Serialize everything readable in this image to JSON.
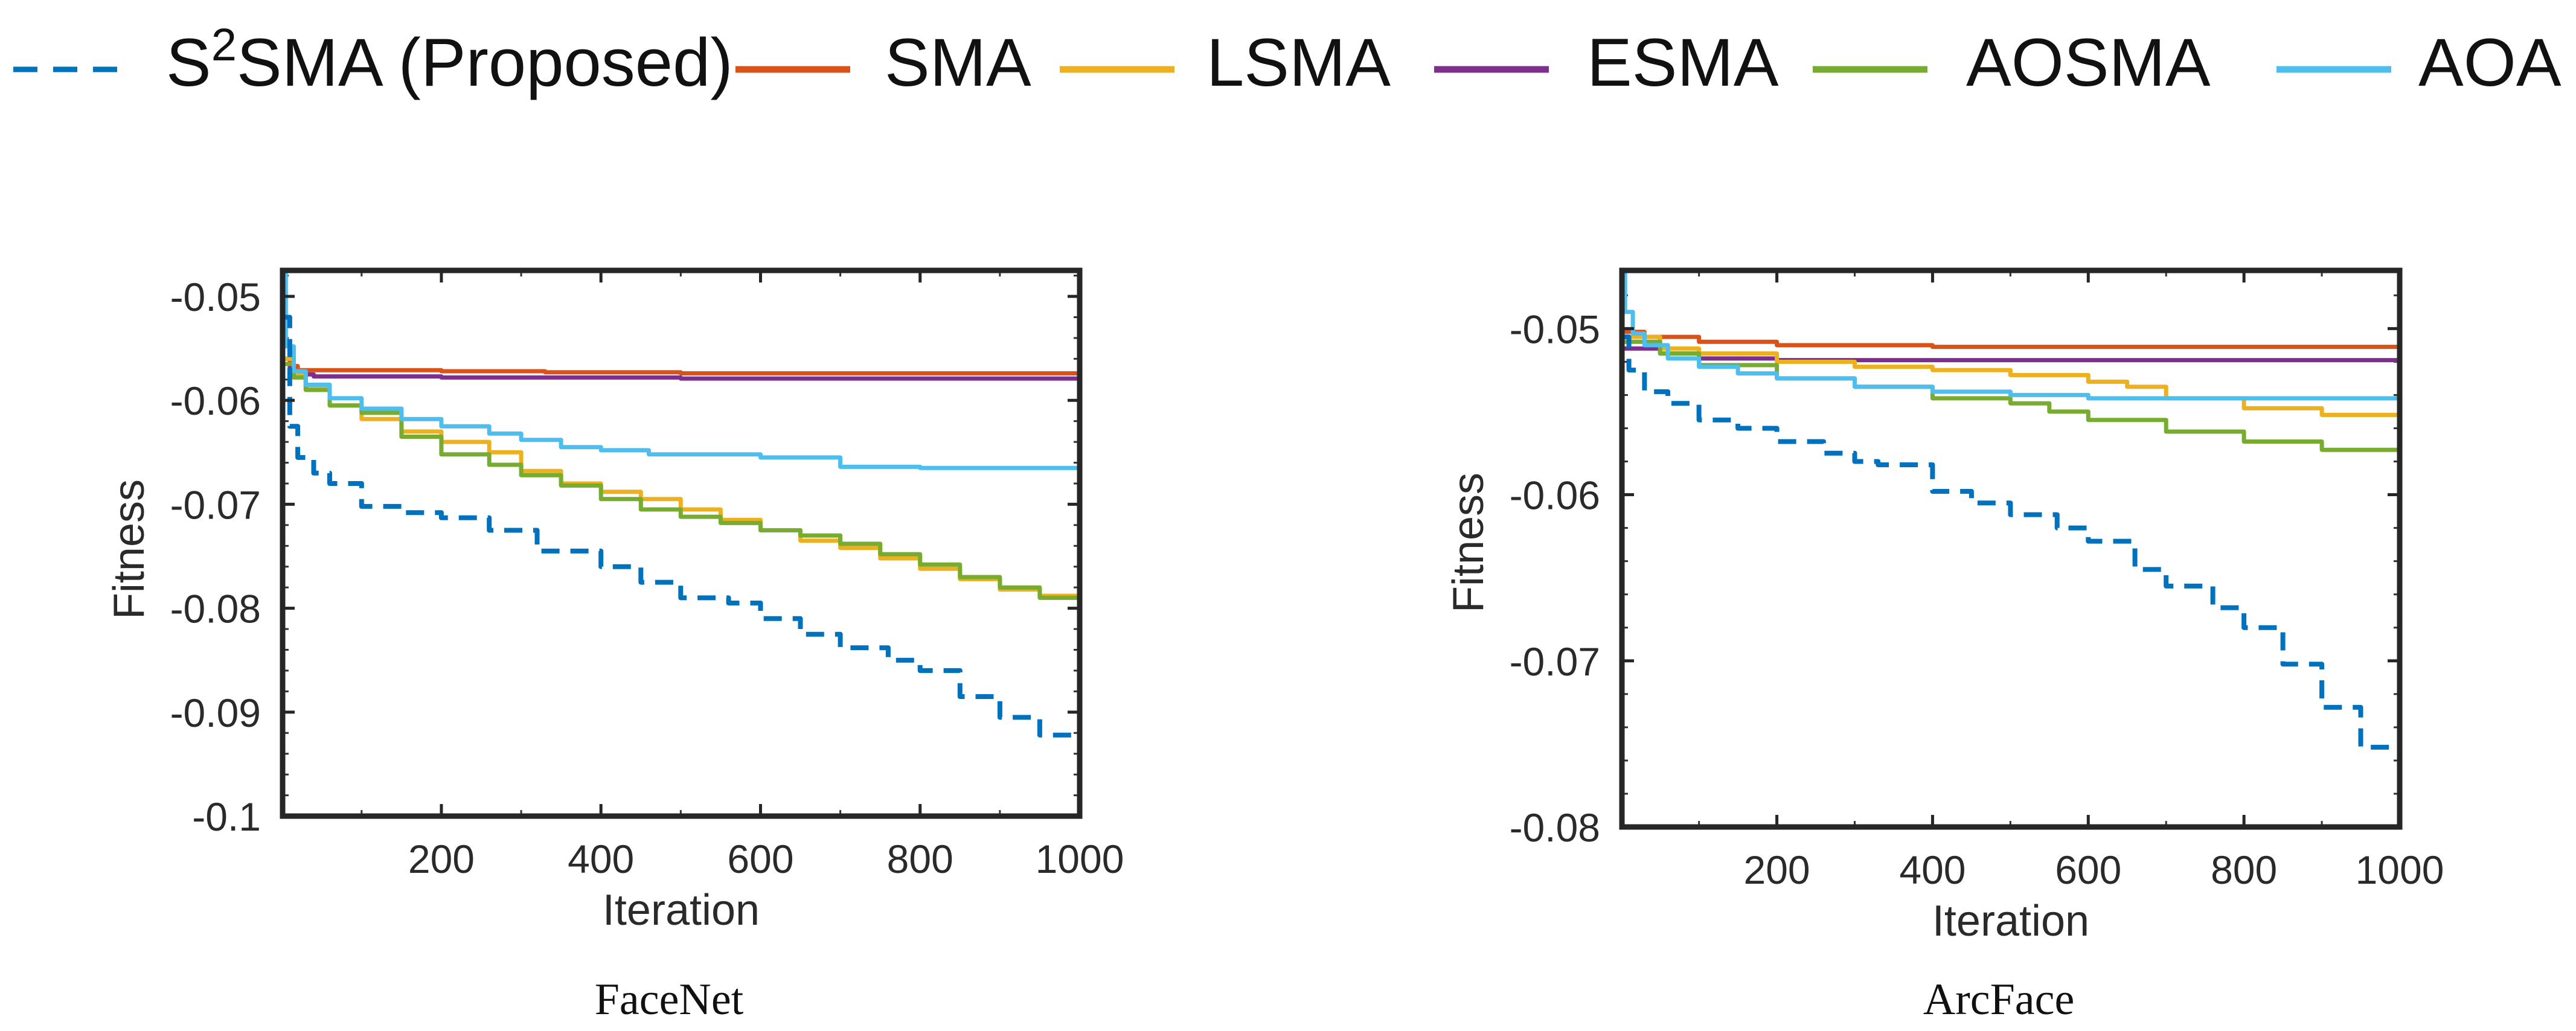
{
  "legend": {
    "entries": [
      {
        "prefix": "S",
        "sup": "2",
        "rest": "SMA (Proposed)",
        "color": "#0072BD",
        "dash": true
      },
      {
        "prefix": "SMA",
        "sup": "",
        "rest": "",
        "color": "#D95319",
        "dash": false
      },
      {
        "prefix": "LSMA",
        "sup": "",
        "rest": "",
        "color": "#EDB120",
        "dash": false
      },
      {
        "prefix": "ESMA",
        "sup": "",
        "rest": "",
        "color": "#7E2F8E",
        "dash": false
      },
      {
        "prefix": "AOSMA",
        "sup": "",
        "rest": "",
        "color": "#77AC30",
        "dash": false
      },
      {
        "prefix": "AOA",
        "sup": "",
        "rest": "",
        "color": "#4DBEEE",
        "dash": false
      }
    ]
  },
  "chart_data": [
    {
      "type": "line",
      "caption": "FaceNet",
      "xlabel": "Iteration",
      "ylabel": "Fitness",
      "xlim": [
        1,
        1000
      ],
      "ylim": [
        -0.1,
        -0.0475
      ],
      "xticks": [
        200,
        400,
        600,
        800,
        1000
      ],
      "xtick_labels": [
        "200",
        "400",
        "600",
        "800",
        "1000"
      ],
      "yticks": [
        -0.05,
        -0.06,
        -0.07,
        -0.08,
        -0.09,
        -0.1
      ],
      "ytick_labels": [
        "-0.05",
        "-0.06",
        "-0.07",
        "-0.08",
        "-0.09",
        "-0.1"
      ],
      "grid": false,
      "series": [
        {
          "name": "S2SMA (Proposed)",
          "color": "#0072BD",
          "dash": true,
          "x": [
            1,
            10,
            20,
            40,
            60,
            100,
            150,
            200,
            260,
            320,
            400,
            450,
            500,
            560,
            600,
            650,
            700,
            760,
            800,
            850,
            900,
            950,
            1000
          ],
          "y": [
            -0.052,
            -0.0625,
            -0.0655,
            -0.067,
            -0.068,
            -0.0702,
            -0.0708,
            -0.0713,
            -0.0725,
            -0.0745,
            -0.076,
            -0.0775,
            -0.079,
            -0.0795,
            -0.081,
            -0.0825,
            -0.0838,
            -0.085,
            -0.086,
            -0.0885,
            -0.0905,
            -0.0922,
            -0.094
          ]
        },
        {
          "name": "SMA",
          "color": "#D95319",
          "dash": false,
          "x": [
            1,
            10,
            20,
            200,
            330,
            500,
            1000
          ],
          "y": [
            -0.056,
            -0.0567,
            -0.0571,
            -0.0572,
            -0.0573,
            -0.0574,
            -0.0575
          ]
        },
        {
          "name": "LSMA",
          "color": "#EDB120",
          "dash": false,
          "x": [
            1,
            15,
            30,
            60,
            100,
            150,
            200,
            260,
            300,
            350,
            400,
            450,
            500,
            550,
            600,
            650,
            700,
            750,
            800,
            850,
            900,
            950,
            1000
          ],
          "y": [
            -0.056,
            -0.0575,
            -0.0588,
            -0.0605,
            -0.0618,
            -0.063,
            -0.064,
            -0.065,
            -0.0668,
            -0.068,
            -0.0688,
            -0.0695,
            -0.0705,
            -0.0715,
            -0.0725,
            -0.0735,
            -0.0742,
            -0.0752,
            -0.0762,
            -0.0772,
            -0.0782,
            -0.0788,
            -0.0795
          ]
        },
        {
          "name": "ESMA",
          "color": "#7E2F8E",
          "dash": false,
          "x": [
            1,
            10,
            20,
            40,
            200,
            500,
            1000
          ],
          "y": [
            -0.0565,
            -0.0572,
            -0.0575,
            -0.0577,
            -0.0578,
            -0.0579,
            -0.058
          ]
        },
        {
          "name": "AOSMA",
          "color": "#77AC30",
          "dash": false,
          "x": [
            1,
            15,
            30,
            60,
            100,
            150,
            200,
            260,
            300,
            350,
            400,
            450,
            500,
            550,
            600,
            650,
            700,
            750,
            800,
            850,
            900,
            950,
            1000
          ],
          "y": [
            -0.0565,
            -0.0578,
            -0.059,
            -0.0605,
            -0.0612,
            -0.0635,
            -0.0652,
            -0.0662,
            -0.0672,
            -0.0682,
            -0.0695,
            -0.0705,
            -0.0712,
            -0.0718,
            -0.0725,
            -0.073,
            -0.0738,
            -0.0748,
            -0.0758,
            -0.077,
            -0.078,
            -0.079,
            -0.08
          ]
        },
        {
          "name": "AOA",
          "color": "#4DBEEE",
          "dash": false,
          "x": [
            1,
            5,
            15,
            30,
            60,
            100,
            150,
            200,
            260,
            300,
            350,
            400,
            460,
            500,
            600,
            700,
            800,
            1000
          ],
          "y": [
            -0.0475,
            -0.0548,
            -0.0572,
            -0.0585,
            -0.0598,
            -0.0608,
            -0.0618,
            -0.0625,
            -0.0632,
            -0.0638,
            -0.0645,
            -0.0648,
            -0.0652,
            -0.0652,
            -0.0655,
            -0.0664,
            -0.0665,
            -0.0666
          ]
        }
      ]
    },
    {
      "type": "line",
      "caption": "ArcFace",
      "xlabel": "Iteration",
      "ylabel": "Fitness",
      "xlim": [
        1,
        1000
      ],
      "ylim": [
        -0.08,
        -0.0465
      ],
      "xticks": [
        200,
        400,
        600,
        800,
        1000
      ],
      "xtick_labels": [
        "200",
        "400",
        "600",
        "800",
        "1000"
      ],
      "yticks": [
        -0.05,
        -0.06,
        -0.07,
        -0.08
      ],
      "ytick_labels": [
        "-0.05",
        "-0.06",
        "-0.07",
        "-0.08"
      ],
      "grid": false,
      "series": [
        {
          "name": "S2SMA (Proposed)",
          "color": "#0072BD",
          "dash": true,
          "x": [
            1,
            10,
            30,
            60,
            100,
            150,
            200,
            260,
            300,
            330,
            400,
            450,
            500,
            560,
            600,
            660,
            700,
            760,
            800,
            850,
            900,
            950,
            1000
          ],
          "y": [
            -0.0505,
            -0.0525,
            -0.0538,
            -0.0545,
            -0.0555,
            -0.056,
            -0.0568,
            -0.0575,
            -0.058,
            -0.0582,
            -0.0598,
            -0.0605,
            -0.0612,
            -0.062,
            -0.0628,
            -0.0645,
            -0.0655,
            -0.0668,
            -0.068,
            -0.0702,
            -0.0728,
            -0.0752,
            -0.0782
          ]
        },
        {
          "name": "SMA",
          "color": "#D95319",
          "dash": false,
          "x": [
            1,
            30,
            100,
            200,
            400,
            1000
          ],
          "y": [
            -0.0502,
            -0.0505,
            -0.0508,
            -0.051,
            -0.0511,
            -0.0511
          ]
        },
        {
          "name": "LSMA",
          "color": "#EDB120",
          "dash": false,
          "x": [
            1,
            50,
            100,
            200,
            300,
            400,
            500,
            600,
            650,
            700,
            800,
            900,
            1000
          ],
          "y": [
            -0.0505,
            -0.0512,
            -0.0515,
            -0.052,
            -0.0523,
            -0.0525,
            -0.0528,
            -0.0532,
            -0.0535,
            -0.0542,
            -0.0548,
            -0.0552,
            -0.0558
          ]
        },
        {
          "name": "ESMA",
          "color": "#7E2F8E",
          "dash": false,
          "x": [
            1,
            50,
            100,
            200,
            1000
          ],
          "y": [
            -0.0512,
            -0.0515,
            -0.0518,
            -0.0519,
            -0.052
          ]
        },
        {
          "name": "AOSMA",
          "color": "#77AC30",
          "dash": false,
          "x": [
            1,
            50,
            100,
            200,
            300,
            400,
            500,
            550,
            600,
            700,
            800,
            900,
            1000
          ],
          "y": [
            -0.0508,
            -0.0515,
            -0.0522,
            -0.053,
            -0.0535,
            -0.0542,
            -0.0545,
            -0.055,
            -0.0555,
            -0.0562,
            -0.0568,
            -0.0573,
            -0.0578
          ]
        },
        {
          "name": "AOA",
          "color": "#4DBEEE",
          "dash": false,
          "x": [
            1,
            5,
            15,
            30,
            60,
            100,
            150,
            200,
            300,
            400,
            500,
            600,
            700,
            1000
          ],
          "y": [
            -0.0465,
            -0.049,
            -0.0503,
            -0.051,
            -0.0518,
            -0.0523,
            -0.0527,
            -0.053,
            -0.0535,
            -0.0538,
            -0.054,
            -0.0542,
            -0.0542,
            -0.0542
          ]
        }
      ]
    }
  ]
}
